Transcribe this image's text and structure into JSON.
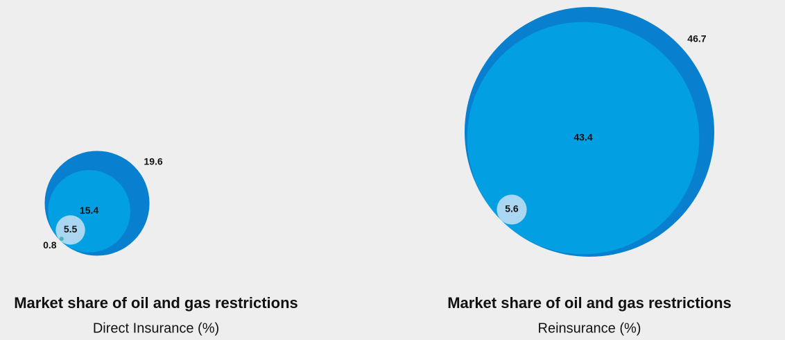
{
  "chart_data": [
    {
      "type": "bubble",
      "title": "Market share of oil and gas restrictions",
      "subtitle": "Direct Insurance (%)",
      "series": [
        {
          "color": "#0880cf",
          "values": [
            19.6
          ]
        },
        {
          "color": "#02a0e2",
          "values": [
            15.4
          ]
        },
        {
          "color": "#a9d6f1",
          "values": [
            5.5
          ]
        },
        {
          "color": "#4fb3bb",
          "values": [
            0.8
          ]
        }
      ]
    },
    {
      "type": "bubble",
      "title": "Market share of oil and gas restrictions",
      "subtitle": "Reinsurance (%)",
      "series": [
        {
          "color": "#0880cf",
          "values": [
            46.7
          ]
        },
        {
          "color": "#02a0e2",
          "values": [
            43.4
          ]
        },
        {
          "color": "#a9d6f1",
          "values": [
            5.6
          ]
        }
      ]
    }
  ]
}
